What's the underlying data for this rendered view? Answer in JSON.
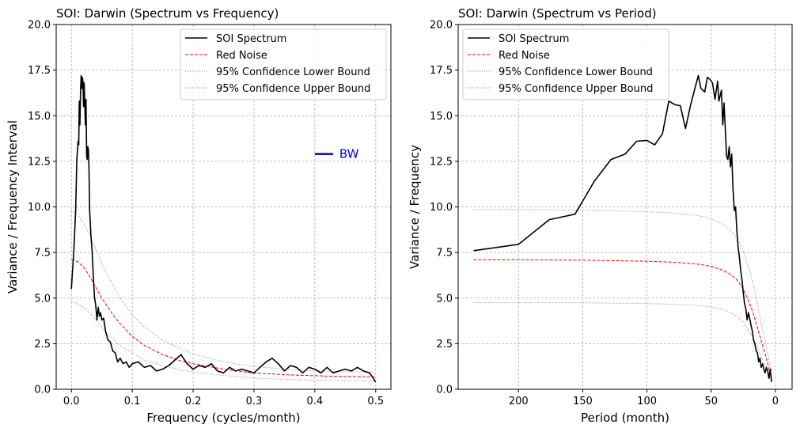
{
  "chart_data": [
    {
      "type": "line",
      "title": "SOI: Darwin (Spectrum vs Frequency)",
      "xlabel": "Frequency (cycles/month)",
      "ylabel": "Variance / Frequency Interval",
      "xlim": [
        -0.025,
        0.525
      ],
      "ylim": [
        0,
        20
      ],
      "xticks": [
        0.0,
        0.1,
        0.2,
        0.3,
        0.4,
        0.5
      ],
      "xtick_labels": [
        "0.0",
        "0.1",
        "0.2",
        "0.3",
        "0.4",
        "0.5"
      ],
      "yticks": [
        0,
        2.5,
        5,
        7.5,
        10,
        12.5,
        15,
        17.5,
        20
      ],
      "ytick_labels": [
        "0.0",
        "2.5",
        "5.0",
        "7.5",
        "10.0",
        "12.5",
        "15.0",
        "17.5",
        "20.0"
      ],
      "grid": true,
      "legend_position": "top-right",
      "annotation": {
        "text": "BW",
        "x0": 0.4,
        "x1": 0.43,
        "y": 12.9,
        "color": "#0000cc"
      },
      "series": [
        {
          "name": "SOI Spectrum",
          "color": "#000000",
          "style": "solid",
          "x": [
            0.0,
            0.004,
            0.007,
            0.009,
            0.011,
            0.012,
            0.013,
            0.014,
            0.015,
            0.016,
            0.017,
            0.018,
            0.019,
            0.02,
            0.021,
            0.022,
            0.023,
            0.024,
            0.025,
            0.026,
            0.027,
            0.028,
            0.029,
            0.03,
            0.032,
            0.034,
            0.036,
            0.038,
            0.04,
            0.042,
            0.044,
            0.046,
            0.048,
            0.05,
            0.053,
            0.056,
            0.06,
            0.064,
            0.068,
            0.072,
            0.076,
            0.08,
            0.085,
            0.09,
            0.095,
            0.1,
            0.11,
            0.12,
            0.13,
            0.14,
            0.15,
            0.16,
            0.17,
            0.18,
            0.19,
            0.2,
            0.21,
            0.22,
            0.23,
            0.24,
            0.25,
            0.26,
            0.27,
            0.28,
            0.29,
            0.3,
            0.31,
            0.32,
            0.33,
            0.34,
            0.35,
            0.36,
            0.37,
            0.38,
            0.39,
            0.4,
            0.41,
            0.42,
            0.43,
            0.44,
            0.45,
            0.46,
            0.47,
            0.48,
            0.49,
            0.5
          ],
          "y": [
            5.5,
            7.6,
            9.8,
            12.6,
            13.6,
            13.4,
            15.8,
            14.5,
            16.3,
            17.2,
            16.5,
            17.1,
            16.9,
            15.5,
            16.8,
            15.7,
            14.5,
            15.9,
            12.8,
            12.6,
            13.3,
            13.1,
            12.0,
            9.8,
            8.5,
            7.6,
            6.2,
            5.0,
            4.6,
            3.8,
            4.5,
            4.0,
            4.2,
            3.8,
            3.9,
            3.2,
            2.7,
            2.6,
            2.1,
            2.0,
            1.5,
            1.7,
            1.4,
            1.5,
            1.2,
            1.4,
            1.5,
            1.2,
            1.3,
            1.0,
            1.1,
            1.3,
            1.6,
            1.9,
            1.4,
            1.1,
            1.3,
            1.2,
            1.4,
            1.0,
            0.9,
            1.2,
            1.0,
            1.1,
            1.0,
            0.9,
            1.2,
            1.5,
            1.7,
            1.4,
            1.0,
            1.3,
            1.2,
            0.9,
            1.2,
            1.1,
            0.9,
            1.2,
            0.9,
            1.0,
            1.1,
            1.0,
            1.2,
            1.0,
            0.9,
            0.4
          ]
        },
        {
          "name": "Red Noise",
          "color": "#ff0000",
          "style": "dashed",
          "x": [
            0.0,
            0.01,
            0.02,
            0.03,
            0.04,
            0.05,
            0.06,
            0.07,
            0.08,
            0.1,
            0.12,
            0.15,
            0.18,
            0.2,
            0.25,
            0.3,
            0.35,
            0.4,
            0.45,
            0.5
          ],
          "y": [
            7.1,
            7.0,
            6.7,
            6.2,
            5.6,
            5.0,
            4.5,
            4.0,
            3.6,
            2.9,
            2.4,
            1.9,
            1.55,
            1.4,
            1.1,
            0.9,
            0.8,
            0.74,
            0.7,
            0.68
          ]
        },
        {
          "name": "95% Confidence Lower Bound",
          "color": "#808080",
          "style": "dotted",
          "x": [
            0.0,
            0.01,
            0.02,
            0.03,
            0.04,
            0.05,
            0.06,
            0.07,
            0.08,
            0.1,
            0.12,
            0.15,
            0.18,
            0.2,
            0.25,
            0.3,
            0.35,
            0.4,
            0.45,
            0.5
          ],
          "y": [
            4.8,
            4.7,
            4.5,
            4.2,
            3.8,
            3.4,
            3.0,
            2.7,
            2.4,
            2.0,
            1.6,
            1.3,
            1.05,
            0.95,
            0.75,
            0.62,
            0.55,
            0.5,
            0.47,
            0.46
          ]
        },
        {
          "name": "95% Confidence Upper Bound",
          "color": "#808080",
          "style": "dotted",
          "x": [
            0.0,
            0.01,
            0.02,
            0.03,
            0.04,
            0.05,
            0.06,
            0.07,
            0.08,
            0.1,
            0.12,
            0.15,
            0.18,
            0.2,
            0.25,
            0.3,
            0.35,
            0.4,
            0.45,
            0.5
          ],
          "y": [
            9.8,
            9.6,
            9.1,
            8.5,
            7.7,
            6.9,
            6.2,
            5.6,
            5.0,
            4.1,
            3.4,
            2.7,
            2.2,
            1.95,
            1.5,
            1.25,
            1.1,
            1.0,
            0.96,
            0.94
          ]
        }
      ]
    },
    {
      "type": "line",
      "title": "SOI: Darwin (Spectrum vs Period)",
      "xlabel": "Period (month)",
      "ylabel": "Variance / Frequency",
      "xlim": [
        247,
        -13
      ],
      "ylim": [
        0,
        20
      ],
      "xticks": [
        200,
        150,
        100,
        50,
        0
      ],
      "xtick_labels": [
        "200",
        "150",
        "100",
        "50",
        "0"
      ],
      "yticks": [
        0,
        2.5,
        5,
        7.5,
        10,
        12.5,
        15,
        17.5,
        20
      ],
      "ytick_labels": [
        "0.0",
        "2.5",
        "5.0",
        "7.5",
        "10.0",
        "12.5",
        "15.0",
        "17.5",
        "20.0"
      ],
      "grid": true,
      "legend_position": "top-left",
      "series": [
        {
          "name": "SOI Spectrum",
          "color": "#000000",
          "style": "solid",
          "x": [
            235,
            200,
            176,
            156,
            141,
            128,
            117,
            108,
            100,
            94,
            88,
            83,
            78,
            74,
            70,
            66,
            63,
            60,
            58,
            55,
            53,
            51,
            49,
            47,
            45,
            44,
            42,
            41,
            40,
            38,
            37,
            36,
            35,
            34,
            33,
            32,
            31,
            30,
            29,
            28,
            27,
            26,
            25,
            24,
            23,
            22,
            21,
            20,
            19,
            18,
            17,
            16,
            15,
            14,
            13,
            12,
            11,
            10,
            9,
            8,
            7,
            6,
            5,
            4,
            3
          ],
          "y": [
            7.6,
            7.95,
            9.3,
            9.6,
            11.4,
            12.6,
            12.9,
            13.6,
            13.65,
            13.4,
            14.0,
            15.8,
            15.6,
            15.55,
            14.3,
            15.6,
            16.4,
            17.2,
            16.5,
            16.3,
            17.1,
            17.0,
            16.8,
            15.9,
            16.9,
            15.8,
            16.4,
            14.5,
            15.7,
            12.8,
            12.6,
            13.3,
            12.2,
            12.9,
            11.0,
            9.8,
            10.0,
            8.7,
            7.8,
            7.2,
            6.5,
            6.0,
            5.3,
            4.7,
            4.4,
            3.8,
            4.2,
            3.9,
            3.5,
            3.2,
            2.7,
            2.5,
            2.1,
            2.0,
            1.5,
            1.7,
            1.2,
            1.4,
            1.1,
            0.9,
            1.2,
            1.0,
            0.6,
            1.1,
            0.4
          ]
        },
        {
          "name": "Red Noise",
          "color": "#ff0000",
          "style": "dashed",
          "x": [
            235,
            200,
            150,
            100,
            80,
            60,
            50,
            40,
            35,
            30,
            25,
            20,
            17,
            15,
            12,
            10,
            8,
            6,
            5,
            4,
            3
          ],
          "y": [
            7.1,
            7.1,
            7.08,
            7.02,
            6.97,
            6.86,
            6.74,
            6.5,
            6.3,
            6.0,
            5.5,
            4.7,
            4.1,
            3.6,
            2.9,
            2.4,
            1.95,
            1.4,
            1.1,
            0.9,
            0.75
          ]
        },
        {
          "name": "95% Confidence Lower Bound",
          "color": "#808080",
          "style": "dotted",
          "x": [
            235,
            200,
            150,
            100,
            80,
            60,
            50,
            40,
            35,
            30,
            25,
            20,
            17,
            15,
            12,
            10,
            8,
            6,
            5,
            4,
            3
          ],
          "y": [
            4.75,
            4.75,
            4.74,
            4.7,
            4.67,
            4.6,
            4.52,
            4.36,
            4.2,
            4.0,
            3.7,
            3.15,
            2.75,
            2.4,
            1.95,
            1.6,
            1.3,
            0.95,
            0.75,
            0.6,
            0.5
          ]
        },
        {
          "name": "95% Confidence Upper Bound",
          "color": "#808080",
          "style": "dotted",
          "x": [
            235,
            200,
            150,
            100,
            80,
            60,
            50,
            40,
            35,
            30,
            25,
            20,
            17,
            15,
            12,
            10,
            8,
            6,
            5,
            4,
            3
          ],
          "y": [
            9.85,
            9.85,
            9.82,
            9.74,
            9.67,
            9.52,
            9.35,
            9.0,
            8.7,
            8.3,
            7.6,
            6.5,
            5.7,
            5.0,
            4.0,
            3.3,
            2.7,
            1.95,
            1.55,
            1.25,
            1.05
          ]
        }
      ]
    }
  ]
}
